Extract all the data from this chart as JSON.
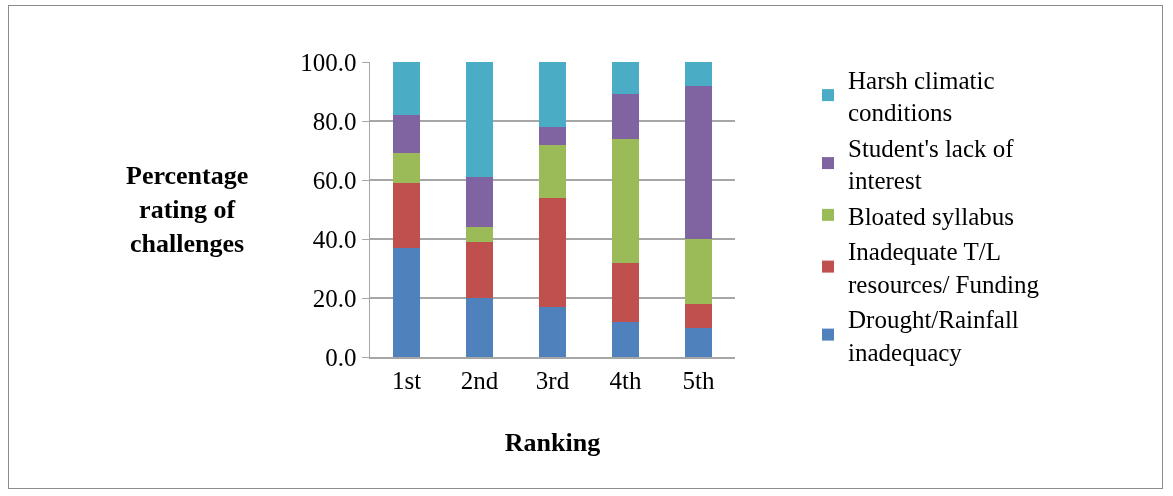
{
  "chart_data": {
    "type": "bar",
    "stacked": true,
    "categories": [
      "1st",
      "2nd",
      "3rd",
      "4th",
      "5th"
    ],
    "xlabel": "Ranking",
    "ylabel": "Percentage rating of challenges",
    "ylim": [
      0,
      100
    ],
    "yticks": [
      {
        "value": 0,
        "label": "0.0"
      },
      {
        "value": 20,
        "label": "20.0"
      },
      {
        "value": 40,
        "label": "40.0"
      },
      {
        "value": 60,
        "label": "60.0"
      },
      {
        "value": 80,
        "label": "80.0"
      },
      {
        "value": 100,
        "label": "100.0"
      }
    ],
    "grid": "y",
    "legend": "right",
    "series": [
      {
        "name": "Drought/Rainfall inadequacy",
        "color": "#4f81bd",
        "values": [
          37,
          20,
          17,
          12,
          10
        ]
      },
      {
        "name": "Inadequate T/L resources/ Funding",
        "color": "#c0504d",
        "values": [
          22,
          19,
          37,
          20,
          8
        ]
      },
      {
        "name": "Bloated syllabus",
        "color": "#9bbb59",
        "values": [
          10,
          5,
          18,
          42,
          22
        ]
      },
      {
        "name": "Student's lack of interest",
        "color": "#8064a2",
        "values": [
          13,
          17,
          6,
          15,
          52
        ]
      },
      {
        "name": "Harsh climatic conditions",
        "color": "#4bacc6",
        "values": [
          18,
          39,
          22,
          11,
          8
        ]
      }
    ]
  }
}
